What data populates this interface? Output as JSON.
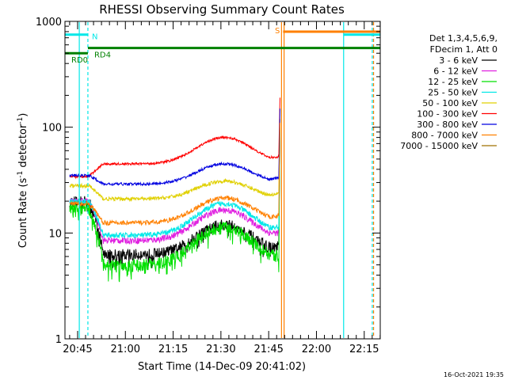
{
  "chart_data": {
    "type": "line",
    "title": "RHESSI Observing Summary Count Rates",
    "xlabel": "Start Time (14-Dec-09 20:41:02)",
    "ylabel_main": "Count Rate (s",
    "ylabel_sup": "-1",
    "ylabel_tail": " detector",
    "ylabel_sup2": "-1",
    "ylabel_end": ")",
    "yscale": "log",
    "ylim": [
      1,
      1000
    ],
    "xlim_minutes": [
      0,
      99
    ],
    "x_ticks": [
      {
        "label": "20:45",
        "min": 3.97
      },
      {
        "label": "21:00",
        "min": 18.97
      },
      {
        "label": "21:15",
        "min": 33.97
      },
      {
        "label": "21:30",
        "min": 48.97
      },
      {
        "label": "21:45",
        "min": 63.97
      },
      {
        "label": "22:00",
        "min": 78.97
      },
      {
        "label": "22:15",
        "min": 93.97
      }
    ],
    "y_ticks": [
      {
        "label": "1",
        "value": 1
      },
      {
        "label": "10",
        "value": 10
      },
      {
        "label": "100",
        "value": 100
      },
      {
        "label": "1000",
        "value": 1000
      }
    ],
    "legend_header": [
      "Det 1,3,4,5,6,9,",
      "FDecim 1, Att 0"
    ],
    "series": [
      {
        "name": "3 - 6 keV",
        "color": "#000000",
        "base": 6.3,
        "peak": 12,
        "noise": 0.12,
        "early": 20,
        "spike": 80
      },
      {
        "name": "6 - 12 keV",
        "color": "#e020e0",
        "base": 8.5,
        "peak": 16.5,
        "noise": 0.07,
        "early": 20,
        "spike": 90
      },
      {
        "name": "12 - 25 keV",
        "color": "#00e000",
        "base": 5.0,
        "peak": 11.5,
        "noise": 0.14,
        "early": 17,
        "spike": 95
      },
      {
        "name": "25 - 50 keV",
        "color": "#00e8e8",
        "base": 9.5,
        "peak": 19,
        "noise": 0.06,
        "early": 20,
        "spike": 100
      },
      {
        "name": "50 - 100 keV",
        "color": "#e0d000",
        "base": 21,
        "peak": 31,
        "noise": 0.04,
        "early": 28,
        "spike": 120
      },
      {
        "name": "100 - 300 keV",
        "color": "#ff0000",
        "base": 45,
        "peak": 80,
        "noise": 0.025,
        "early": 34,
        "spike": 190
      },
      {
        "name": "300 - 800 keV",
        "color": "#0000e0",
        "base": 29,
        "peak": 45,
        "noise": 0.03,
        "early": 35,
        "spike": 150
      },
      {
        "name": "800 - 7000 keV",
        "color": "#ff8000",
        "base": 12.5,
        "peak": 21.5,
        "noise": 0.05,
        "early": 19,
        "spike": 110
      },
      {
        "name": "7000 - 15000 keV",
        "color": "#a07000",
        "base": 0,
        "peak": 0,
        "noise": 0,
        "early": 0,
        "spike": 0
      }
    ],
    "flags": [
      {
        "label": "RD0",
        "color": "#008000",
        "y": 500,
        "start": 0,
        "end": 7.2
      },
      {
        "label": "RD4",
        "color": "#008000",
        "y": 560,
        "start": 7.2,
        "end": 99
      },
      {
        "label": "N",
        "color": "#00e8e8",
        "y": 750,
        "start": 0,
        "end": 7.2
      },
      {
        "label": "",
        "color": "#00e8e8",
        "y": 750,
        "start": 87.5,
        "end": 99
      },
      {
        "label": "S",
        "color": "#ff8000",
        "y": 800,
        "start": 68.5,
        "end": 99
      }
    ],
    "vlines": [
      {
        "min": 4.5,
        "color": "#00e8e8",
        "style": "solid"
      },
      {
        "min": 7.2,
        "color": "#00e8e8",
        "style": "dashed"
      },
      {
        "min": 68.0,
        "color": "#ff8000",
        "style": "solid"
      },
      {
        "min": 68.8,
        "color": "#ff8000",
        "style": "solid"
      },
      {
        "min": 87.5,
        "color": "#00e8e8",
        "style": "solid"
      },
      {
        "min": 96.5,
        "color": "#00e8e8",
        "style": "dashed"
      },
      {
        "min": 96.9,
        "color": "#ff8000",
        "style": "dashed"
      }
    ],
    "timestamp": "16-Oct-2021 19:35"
  }
}
